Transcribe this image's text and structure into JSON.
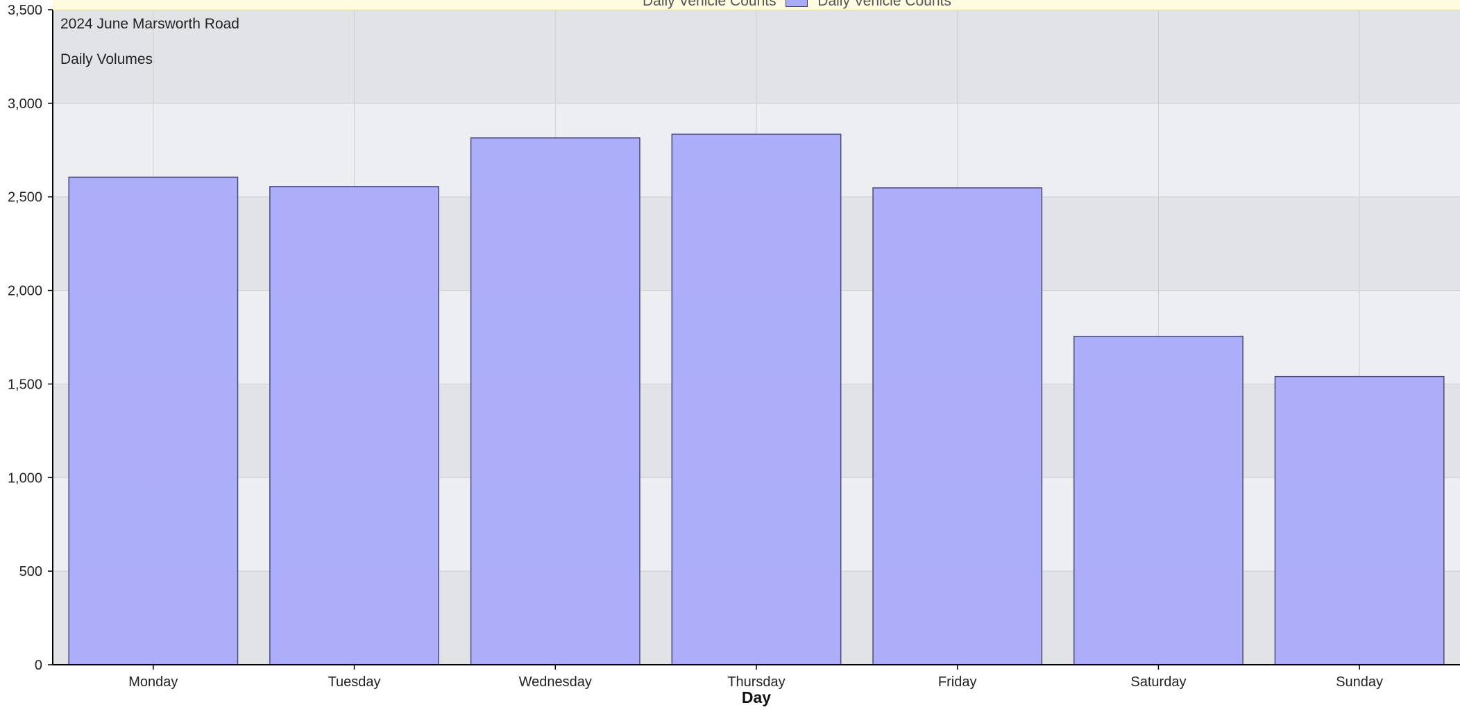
{
  "chart_data": {
    "type": "bar",
    "title": "2024 June Marsworth Road",
    "subtitle": "Daily Volumes",
    "xlabel": "Day",
    "ylabel": "",
    "categories": [
      "Monday",
      "Tuesday",
      "Wednesday",
      "Thursday",
      "Friday",
      "Saturday",
      "Sunday"
    ],
    "series": [
      {
        "name": "Daily Vehicle Counts",
        "values": [
          2605,
          2555,
          2815,
          2835,
          2548,
          1755,
          1540
        ]
      }
    ],
    "ylim": [
      0,
      3500
    ],
    "yticks": [
      0,
      500,
      1000,
      1500,
      2000,
      2500,
      3000,
      3500
    ],
    "ytick_labels": [
      "0",
      "500",
      "1,000",
      "1,500",
      "2,000",
      "2,500",
      "3,000",
      "3,500"
    ],
    "grid": true,
    "legend_position": "top",
    "colors": {
      "bar_fill": "#aaaafa",
      "bar_stroke": "#4a4a7a",
      "plot_bg_light": "#eceef2",
      "plot_bg_dark": "#e2e3e6",
      "grid": "#cfcfcf",
      "axis": "#000000",
      "text": "#222222"
    }
  },
  "legend": {
    "label_left": "Daily Vehicle Counts",
    "label_right": "Daily Vehicle Counts"
  }
}
